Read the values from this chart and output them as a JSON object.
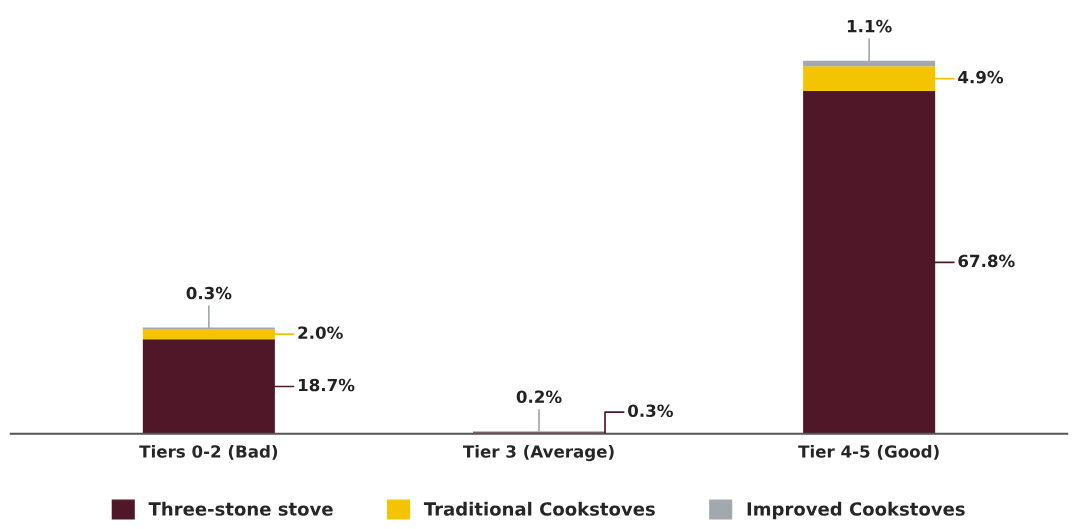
{
  "chart_data": {
    "type": "bar",
    "stacked": true,
    "categories": [
      "Tiers 0-2 (Bad)",
      "Tier 3 (Average)",
      "Tier 4-5 (Good)"
    ],
    "series": [
      {
        "name": "Three-stone stove",
        "color": "#4f1728",
        "values": [
          18.7,
          0.3,
          67.8
        ],
        "value_labels": [
          "18.7%",
          "0.3%",
          "67.8%"
        ]
      },
      {
        "name": "Traditional Cookstoves",
        "color": "#f5c400",
        "values": [
          2.0,
          null,
          4.9
        ],
        "value_labels": [
          "2.0%",
          null,
          "4.9%"
        ]
      },
      {
        "name": "Improved Cookstoves",
        "color": "#a3a8ae",
        "values": [
          0.3,
          0.2,
          1.1
        ],
        "value_labels": [
          "0.3%",
          "0.2%",
          "1.1%"
        ]
      }
    ],
    "legend": "bottom",
    "grid": false,
    "tick_labels": "x"
  }
}
